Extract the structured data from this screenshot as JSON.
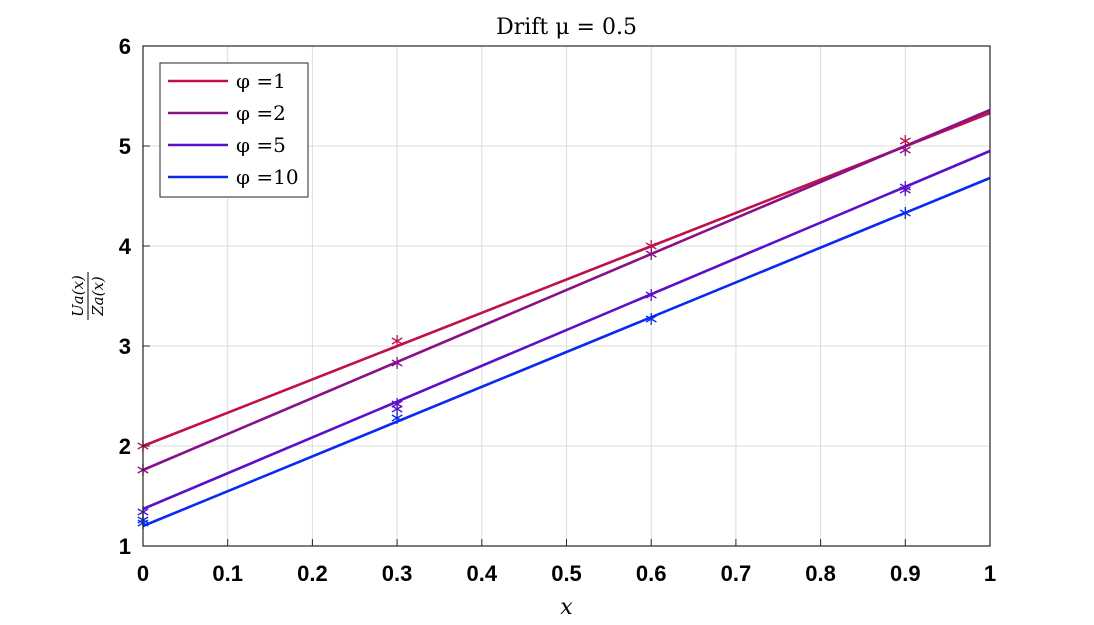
{
  "chart_data": {
    "type": "line",
    "title": "Drift μ = 0.5",
    "xlabel": "x",
    "ylabel_num": "Ua(x)",
    "ylabel_den": "Za(x)",
    "xlim": [
      0,
      1
    ],
    "ylim": [
      1,
      6
    ],
    "xticks": [
      "0",
      "0.1",
      "0.2",
      "0.3",
      "0.4",
      "0.5",
      "0.6",
      "0.7",
      "0.8",
      "0.9",
      "1"
    ],
    "yticks": [
      "1",
      "2",
      "3",
      "4",
      "5",
      "6"
    ],
    "grid": true,
    "legend_position": "top-left",
    "series": [
      {
        "name": "φ =1",
        "color": "#c0104a",
        "line_x": [
          0,
          1
        ],
        "line_y": [
          2.0,
          5.33
        ],
        "marker_x": [
          0,
          0.3,
          0.6,
          0.9
        ],
        "marker_y": [
          2.0,
          3.05,
          4.0,
          5.05
        ]
      },
      {
        "name": "φ =2",
        "color": "#8a1088",
        "line_x": [
          0,
          1
        ],
        "line_y": [
          1.76,
          5.36
        ],
        "marker_x": [
          0,
          0.3,
          0.6,
          0.9
        ],
        "marker_y": [
          1.76,
          2.83,
          3.92,
          4.96
        ]
      },
      {
        "name": "φ =5",
        "color": "#5a10c8",
        "line_x": [
          0,
          1
        ],
        "line_y": [
          1.37,
          4.95
        ],
        "marker_x": [
          0,
          0.3,
          0.6,
          0.9
        ],
        "marker_y": [
          1.34,
          2.37,
          3.51,
          4.56
        ]
      },
      {
        "name": "φ =10",
        "color": "#0a2af0",
        "line_x": [
          0,
          1
        ],
        "line_y": [
          1.2,
          4.68
        ],
        "marker_x": [
          0,
          0.3,
          0.6,
          0.9
        ],
        "marker_y": [
          1.26,
          2.28,
          3.27,
          4.33
        ]
      }
    ],
    "extra_markers": [
      {
        "x": 0.3,
        "y": 2.42,
        "color": "#5a10c8"
      },
      {
        "x": 0.9,
        "y": 4.59,
        "color": "#5a10c8"
      },
      {
        "x": 0,
        "y": 1.23,
        "color": "#0a2af0"
      }
    ]
  }
}
